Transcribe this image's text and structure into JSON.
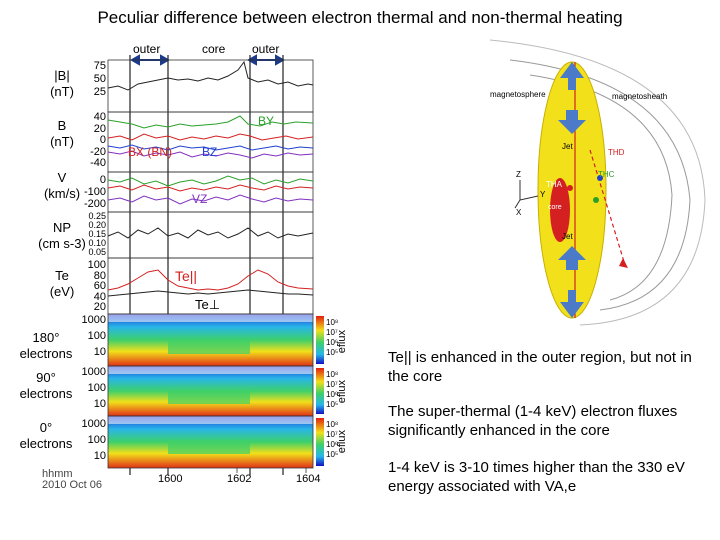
{
  "title": "Peculiar difference between electron thermal and non-thermal heating",
  "regions": [
    "outer",
    "core",
    "outer"
  ],
  "panels": {
    "b": {
      "label_line1": "|B|",
      "label_line2": "(nT)",
      "ticks": [
        "75",
        "50",
        "25"
      ]
    },
    "bvec": {
      "label_line1": "B",
      "label_line2": "(nT)",
      "ticks": [
        "40",
        "20",
        "0",
        "-20",
        "-40"
      ],
      "ann_by": "BY",
      "ann_bx": "BX (BN)",
      "ann_bz": "BZ"
    },
    "v": {
      "label_line1": "V",
      "label_line2": "(km/s)",
      "ticks": [
        "0",
        "-100",
        "-200"
      ],
      "ann_vz": "VZ"
    },
    "np": {
      "label_line1": "NP",
      "label_line2": "(cm s-3)",
      "ticks": [
        "0.25",
        "0.20",
        "0.15",
        "0.10",
        "0.05"
      ]
    },
    "te": {
      "label_line1": "Te",
      "label_line2": "(eV)",
      "ticks": [
        "100",
        "80",
        "60",
        "40",
        "20"
      ],
      "ann_par": "Te||",
      "ann_perp": "Te⊥"
    },
    "e180": {
      "label_line1": "180°",
      "label_line2": "electrons",
      "ticks": [
        "1000",
        "100",
        "10"
      ]
    },
    "e90": {
      "label_line1": "90°",
      "label_line2": "electrons",
      "ticks": [
        "1000",
        "100",
        "10"
      ]
    },
    "e0": {
      "label_line1": "0°",
      "label_line2": "electrons",
      "ticks": [
        "1000",
        "100",
        "10"
      ]
    }
  },
  "colorbar_label": "eflux",
  "colorbar_ticks": [
    "10⁸",
    "10⁷",
    "10⁶",
    "10⁵"
  ],
  "time_axis": {
    "caption_line1": "hhmm",
    "caption_line2": "2010 Oct 06",
    "ticks": [
      "1600",
      "1602",
      "1604"
    ]
  },
  "diagram": {
    "magnetosphere": "magnetosphere",
    "magnetosheath": "magnetosheath",
    "jet_top": "Jet",
    "jet_bottom": "Jet",
    "thd": "THD",
    "thc": "THC",
    "tha": "THA",
    "core": "core",
    "axis_z": "Z",
    "axis_y": "Y",
    "axis_x": "X"
  },
  "bullets": [
    "Te|| is enhanced in the outer region, but not in the core",
    "The super-thermal (1-4 keV) electron fluxes significantly enhanced in the core",
    "1-4 keV is 3-10 times higher than the 330 eV energy associated with VA,e"
  ],
  "colors": {
    "line": "#222222",
    "accent_red": "#d42020",
    "accent_green": "#2aa02a",
    "accent_blue": "#2040d0",
    "accent_purple": "#8030c0",
    "region_arrow": "#1b3a8c",
    "sheath_yellow": "#f2e01a"
  }
}
